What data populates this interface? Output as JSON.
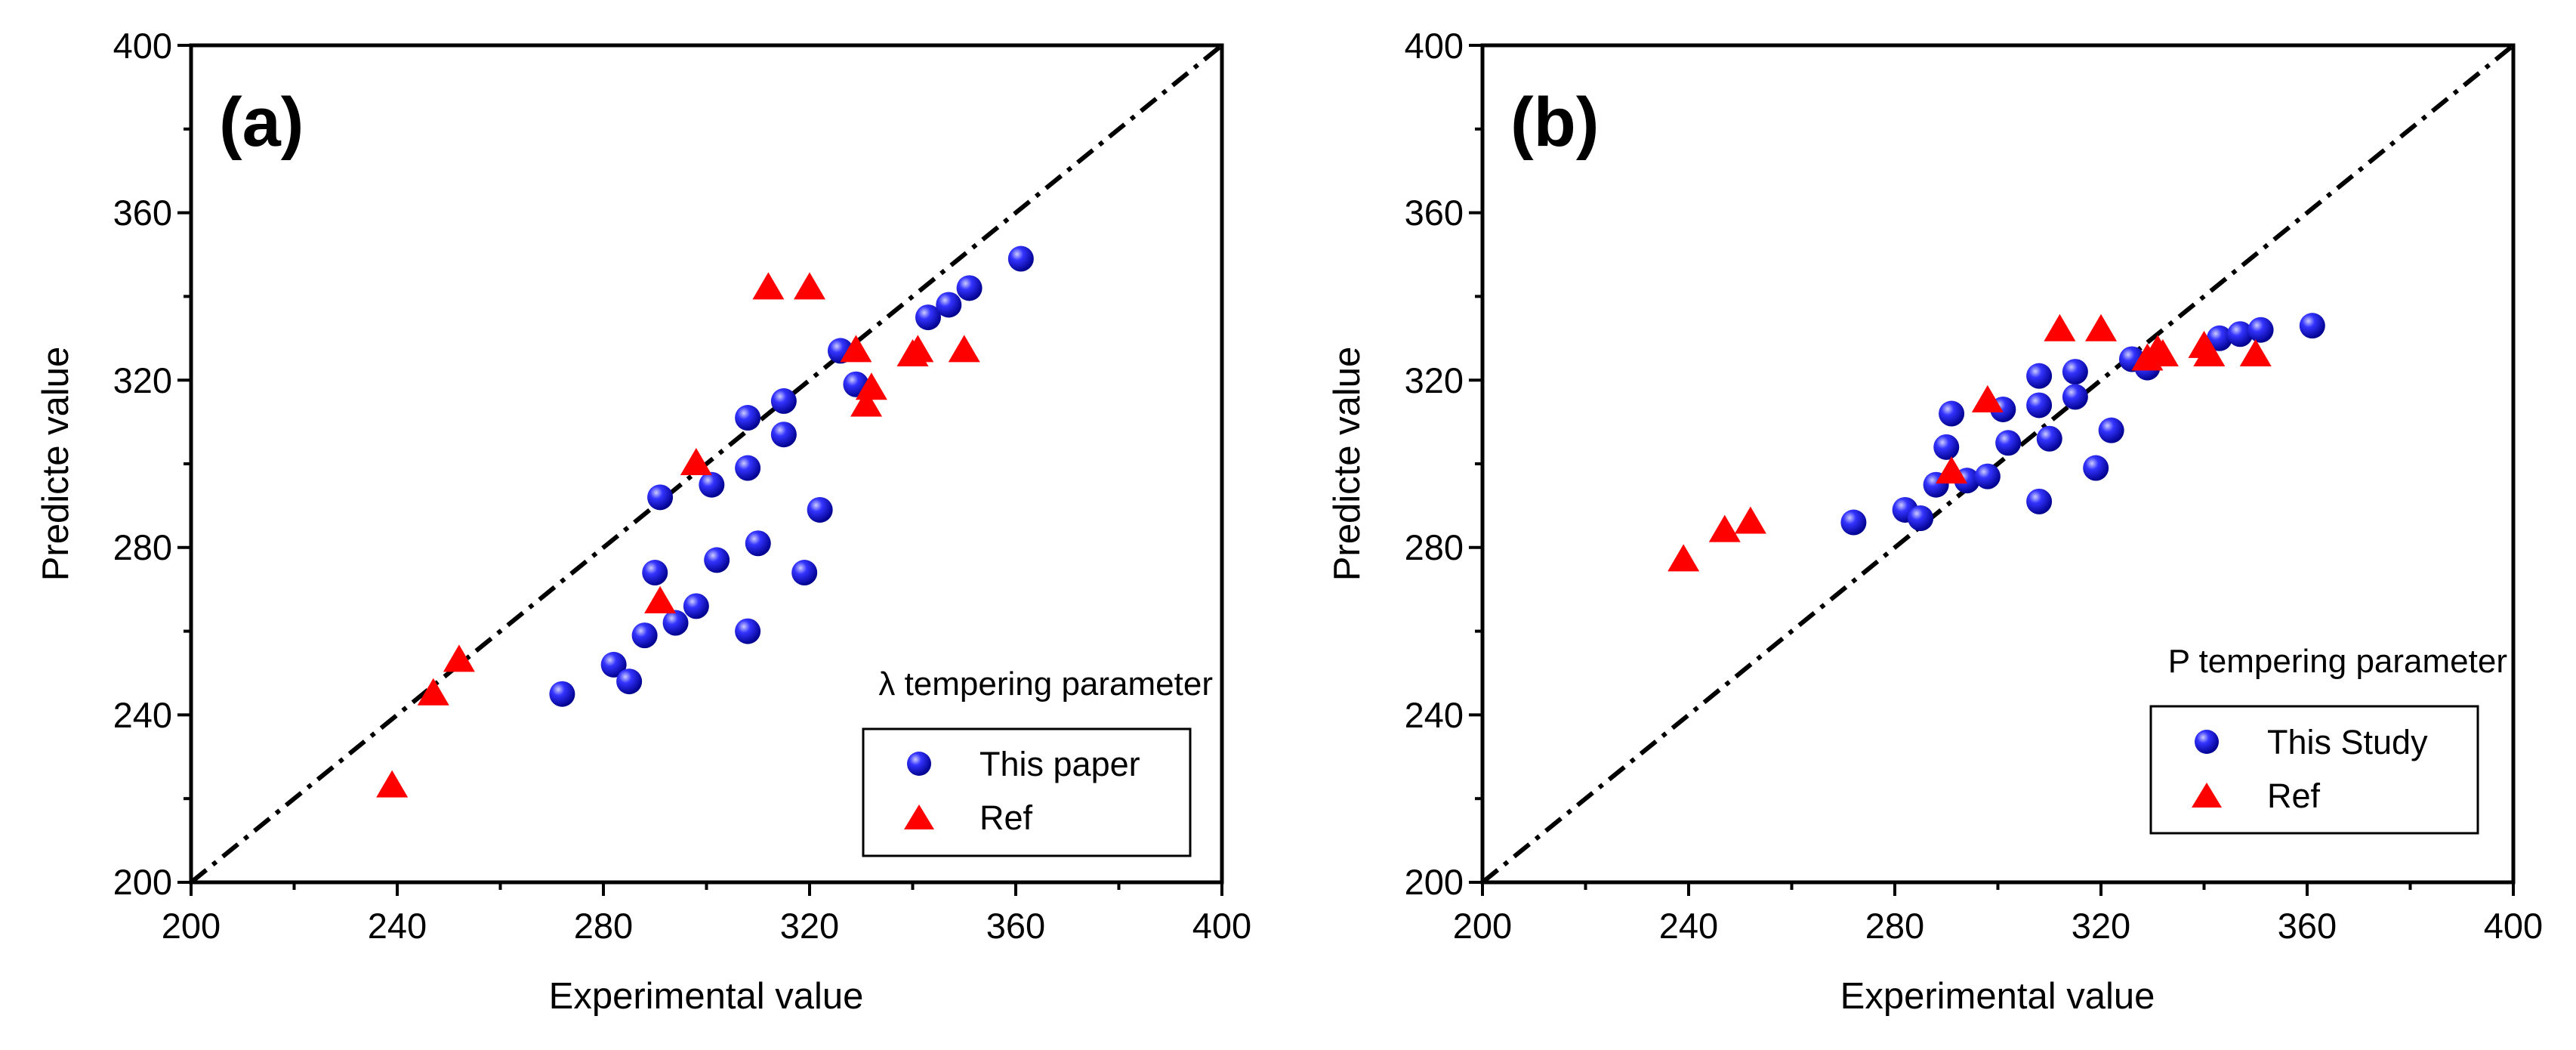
{
  "colors": {
    "this_series": "#1a1aff",
    "ref_series": "#ff0000",
    "axis": "#000000",
    "diagonal": "#000000"
  },
  "chart_data": [
    {
      "type": "scatter",
      "panel_label": "(a)",
      "xlabel": "Experimental value",
      "ylabel": "Predicte value",
      "xlim": [
        200,
        400
      ],
      "ylim": [
        200,
        400
      ],
      "xticks": [
        "200",
        "240",
        "280",
        "320",
        "360",
        "400"
      ],
      "yticks": [
        "200",
        "240",
        "280",
        "320",
        "360",
        "400"
      ],
      "annotation": "λ tempering parameter",
      "reference_line": {
        "style": "dash-dot",
        "from": [
          200,
          200
        ],
        "to": [
          400,
          400
        ]
      },
      "legend_position": "bottom-right",
      "series": [
        {
          "name": "This paper",
          "marker": "sphere",
          "color": "#1a1aff",
          "points": [
            [
              272,
              245
            ],
            [
              282,
              252
            ],
            [
              285,
              248
            ],
            [
              288,
              259
            ],
            [
              290,
              274
            ],
            [
              291,
              292
            ],
            [
              294,
              262
            ],
            [
              298,
              266
            ],
            [
              301,
              295
            ],
            [
              302,
              277
            ],
            [
              308,
              311
            ],
            [
              308,
              299
            ],
            [
              308,
              260
            ],
            [
              310,
              281
            ],
            [
              315,
              315
            ],
            [
              315,
              307
            ],
            [
              319,
              274
            ],
            [
              322,
              289
            ],
            [
              326,
              327
            ],
            [
              329,
              319
            ],
            [
              343,
              335
            ],
            [
              347,
              338
            ],
            [
              351,
              342
            ],
            [
              361,
              349
            ]
          ]
        },
        {
          "name": "Ref",
          "marker": "triangle",
          "color": "#ff0000",
          "points": [
            [
              239,
              223
            ],
            [
              247,
              245
            ],
            [
              252,
              253
            ],
            [
              291,
              267
            ],
            [
              298,
              300
            ],
            [
              312,
              342
            ],
            [
              320,
              342
            ],
            [
              329,
              327
            ],
            [
              331,
              314
            ],
            [
              332,
              318
            ],
            [
              340,
              326
            ],
            [
              341,
              327
            ],
            [
              350,
              327
            ]
          ]
        }
      ]
    },
    {
      "type": "scatter",
      "panel_label": "(b)",
      "xlabel": "Experimental value",
      "ylabel": "Predicte value",
      "xlim": [
        200,
        400
      ],
      "ylim": [
        200,
        400
      ],
      "xticks": [
        "200",
        "240",
        "280",
        "320",
        "360",
        "400"
      ],
      "yticks": [
        "200",
        "240",
        "280",
        "320",
        "360",
        "400"
      ],
      "annotation": "P tempering parameter",
      "reference_line": {
        "style": "dash-dot",
        "from": [
          200,
          200
        ],
        "to": [
          400,
          400
        ]
      },
      "legend_position": "bottom-right",
      "series": [
        {
          "name": "This Study",
          "marker": "sphere",
          "color": "#1a1aff",
          "points": [
            [
              272,
              286
            ],
            [
              282,
              289
            ],
            [
              285,
              287
            ],
            [
              288,
              295
            ],
            [
              290,
              304
            ],
            [
              291,
              312
            ],
            [
              294,
              296
            ],
            [
              298,
              297
            ],
            [
              301,
              313
            ],
            [
              302,
              305
            ],
            [
              308,
              321
            ],
            [
              308,
              314
            ],
            [
              308,
              291
            ],
            [
              310,
              306
            ],
            [
              315,
              322
            ],
            [
              315,
              316
            ],
            [
              319,
              299
            ],
            [
              322,
              308
            ],
            [
              326,
              325
            ],
            [
              329,
              323
            ],
            [
              343,
              330
            ],
            [
              347,
              331
            ],
            [
              351,
              332
            ],
            [
              361,
              333
            ]
          ]
        },
        {
          "name": "Ref",
          "marker": "triangle",
          "color": "#ff0000",
          "points": [
            [
              239,
              277
            ],
            [
              247,
              284
            ],
            [
              252,
              286
            ],
            [
              291,
              298
            ],
            [
              298,
              315
            ],
            [
              312,
              332
            ],
            [
              320,
              332
            ],
            [
              329,
              325
            ],
            [
              331,
              327
            ],
            [
              332,
              326
            ],
            [
              340,
              328
            ],
            [
              341,
              326
            ],
            [
              350,
              326
            ]
          ]
        }
      ]
    }
  ]
}
